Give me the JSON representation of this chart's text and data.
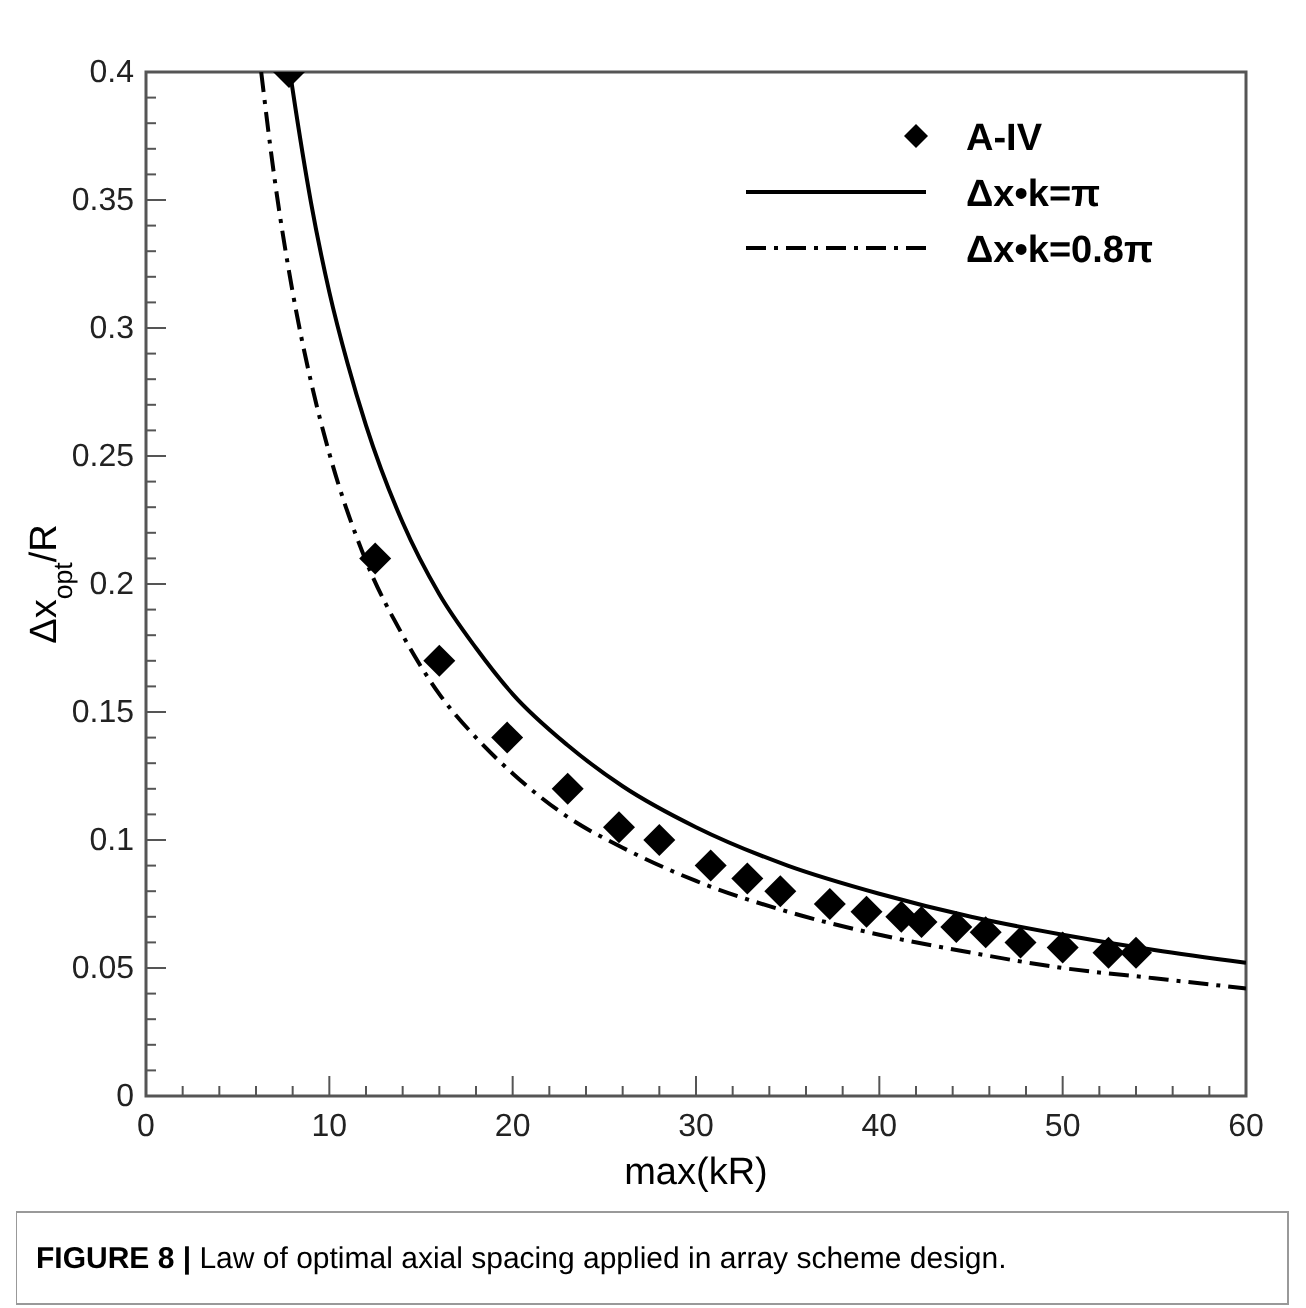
{
  "chart_data": {
    "type": "line",
    "xlabel": "max(kR)",
    "ylabel": "Δx$_{opt}$/R",
    "xlim": [
      0,
      60
    ],
    "ylim": [
      0,
      0.4
    ],
    "xticks": [
      0,
      {
        "value": 2,
        "label": null
      },
      {
        "value": 4,
        "label": null
      },
      {
        "value": 6,
        "label": null
      },
      {
        "value": 8,
        "label": null
      },
      10,
      {
        "value": 12,
        "label": null
      },
      {
        "value": 14,
        "label": null
      },
      {
        "value": 16,
        "label": null
      },
      {
        "value": 18,
        "label": null
      },
      20,
      {
        "value": 22,
        "label": null
      },
      {
        "value": 24,
        "label": null
      },
      {
        "value": 26,
        "label": null
      },
      {
        "value": 28,
        "label": null
      },
      30,
      {
        "value": 32,
        "label": null
      },
      {
        "value": 34,
        "label": null
      },
      {
        "value": 36,
        "label": null
      },
      {
        "value": 38,
        "label": null
      },
      40,
      {
        "value": 42,
        "label": null
      },
      {
        "value": 44,
        "label": null
      },
      {
        "value": 46,
        "label": null
      },
      {
        "value": 48,
        "label": null
      },
      50,
      {
        "value": 52,
        "label": null
      },
      {
        "value": 54,
        "label": null
      },
      {
        "value": 56,
        "label": null
      },
      {
        "value": 58,
        "label": null
      },
      60
    ],
    "yticks": [
      0,
      {
        "value": 0.01,
        "label": null
      },
      {
        "value": 0.02,
        "label": null
      },
      {
        "value": 0.03,
        "label": null
      },
      {
        "value": 0.04,
        "label": null
      },
      0.05,
      {
        "value": 0.06,
        "label": null
      },
      {
        "value": 0.07,
        "label": null
      },
      {
        "value": 0.08,
        "label": null
      },
      {
        "value": 0.09,
        "label": null
      },
      0.1,
      {
        "value": 0.11,
        "label": null
      },
      {
        "value": 0.12,
        "label": null
      },
      {
        "value": 0.13,
        "label": null
      },
      {
        "value": 0.14,
        "label": null
      },
      0.15,
      {
        "value": 0.16,
        "label": null
      },
      {
        "value": 0.17,
        "label": null
      },
      {
        "value": 0.18,
        "label": null
      },
      {
        "value": 0.19,
        "label": null
      },
      0.2,
      {
        "value": 0.21,
        "label": null
      },
      {
        "value": 0.22,
        "label": null
      },
      {
        "value": 0.23,
        "label": null
      },
      {
        "value": 0.24,
        "label": null
      },
      0.25,
      {
        "value": 0.26,
        "label": null
      },
      {
        "value": 0.27,
        "label": null
      },
      {
        "value": 0.28,
        "label": null
      },
      {
        "value": 0.29,
        "label": null
      },
      0.3,
      {
        "value": 0.31,
        "label": null
      },
      {
        "value": 0.32,
        "label": null
      },
      {
        "value": 0.33,
        "label": null
      },
      {
        "value": 0.34,
        "label": null
      },
      0.35,
      {
        "value": 0.36,
        "label": null
      },
      {
        "value": 0.37,
        "label": null
      },
      {
        "value": 0.38,
        "label": null
      },
      {
        "value": 0.39,
        "label": null
      },
      0.4
    ],
    "grid": false,
    "legend": "top right",
    "series": [
      {
        "name": "A-IV",
        "type": "scatter",
        "marker": "diamond",
        "color": "#000000",
        "x": [
          7.8,
          12.5,
          16,
          19.7,
          23,
          25.8,
          28,
          30.8,
          32.8,
          34.6,
          37.3,
          39.3,
          41.2,
          42.3,
          44.2,
          45.8,
          47.7,
          50,
          52.5,
          54
        ],
        "values": [
          0.4,
          0.21,
          0.17,
          0.14,
          0.12,
          0.105,
          0.1,
          0.09,
          0.085,
          0.08,
          0.075,
          0.072,
          0.07,
          0.068,
          0.066,
          0.064,
          0.06,
          0.058,
          0.056,
          0.056
        ]
      },
      {
        "name": "Δx•k=π",
        "line_style": "solid",
        "color": "#000000",
        "x": [
          7.854,
          8,
          9,
          10,
          11,
          12,
          14,
          16,
          18,
          20,
          23,
          26,
          30,
          35,
          40,
          45,
          50,
          55,
          60
        ],
        "values": [
          0.4,
          0.393,
          0.349,
          0.314,
          0.286,
          0.262,
          0.224,
          0.196,
          0.175,
          0.157,
          0.137,
          0.121,
          0.105,
          0.09,
          0.079,
          0.07,
          0.063,
          0.057,
          0.052
        ]
      },
      {
        "name": "Δx•k=0.8π",
        "line_style": "dashdot",
        "color": "#000000",
        "x": [
          6.283,
          7,
          8,
          9,
          10,
          12,
          14,
          16,
          18,
          20,
          23,
          26,
          30,
          35,
          40,
          45,
          50,
          55,
          60
        ],
        "values": [
          0.4,
          0.359,
          0.314,
          0.279,
          0.251,
          0.209,
          0.18,
          0.157,
          0.14,
          0.126,
          0.109,
          0.097,
          0.084,
          0.072,
          0.063,
          0.056,
          0.05,
          0.046,
          0.042
        ]
      }
    ],
    "annotations": [
      "FIGURE 8 | Law of optimal axial spacing applied in array scheme design."
    ]
  }
}
